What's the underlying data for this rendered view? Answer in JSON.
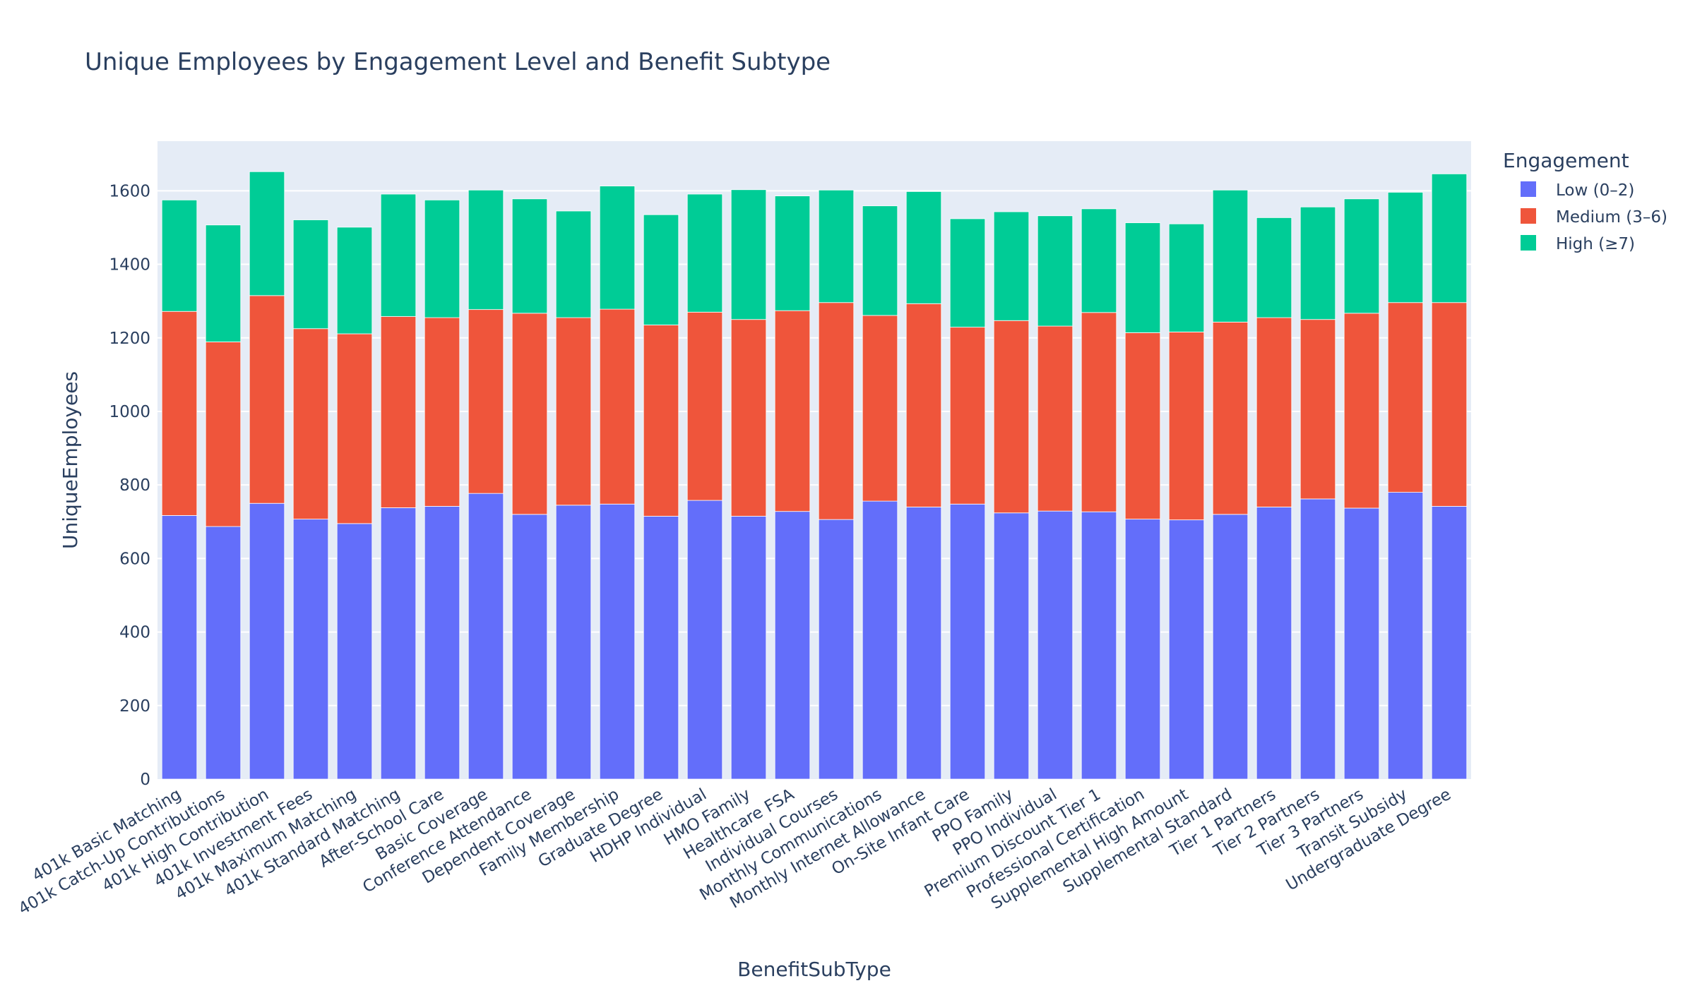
{
  "chart_data": {
    "type": "bar",
    "stacked": true,
    "title": "Unique Employees by Engagement Level and Benefit Subtype",
    "xlabel": "BenefitSubType",
    "ylabel": "UniqueEmployees",
    "ylim": [
      0,
      1735
    ],
    "yticks": [
      0,
      200,
      400,
      600,
      800,
      1000,
      1200,
      1400,
      1600
    ],
    "grid": true,
    "legend": {
      "title": "Engagement",
      "placement": "right"
    },
    "categories": [
      "401k Basic Matching",
      "401k Catch-Up Contributions",
      "401k High Contribution",
      "401k Investment Fees",
      "401k Maximum Matching",
      "401k Standard Matching",
      "After-School Care",
      "Basic Coverage",
      "Conference Attendance",
      "Dependent Coverage",
      "Family Membership",
      "Graduate Degree",
      "HDHP Individual",
      "HMO Family",
      "Healthcare FSA",
      "Individual Courses",
      "Monthly Communications",
      "Monthly Internet Allowance",
      "On-Site Infant Care",
      "PPO Family",
      "PPO Individual",
      "Premium Discount Tier 1",
      "Professional Certification",
      "Supplemental High Amount",
      "Supplemental Standard",
      "Tier 1 Partners",
      "Tier 2 Partners",
      "Tier 3 Partners",
      "Transit Subsidy",
      "Undergraduate Degree"
    ],
    "series": [
      {
        "name": "Low (0–2)",
        "color": "#636efa",
        "values": [
          717,
          687,
          750,
          707,
          695,
          738,
          742,
          777,
          720,
          745,
          748,
          715,
          758,
          715,
          728,
          706,
          756,
          740,
          748,
          724,
          729,
          727,
          707,
          705,
          720,
          740,
          762,
          737,
          780,
          742
        ]
      },
      {
        "name": "Medium (3–6)",
        "color": "#ef553b",
        "values": [
          555,
          502,
          565,
          518,
          516,
          520,
          513,
          500,
          547,
          510,
          530,
          520,
          512,
          535,
          546,
          590,
          505,
          553,
          481,
          523,
          503,
          542,
          507,
          511,
          523,
          515,
          488,
          530,
          516,
          554
        ]
      },
      {
        "name": "High (≥7)",
        "color": "#00cc96",
        "values": [
          303,
          318,
          337,
          296,
          290,
          333,
          320,
          325,
          311,
          290,
          335,
          300,
          321,
          353,
          312,
          306,
          298,
          305,
          295,
          296,
          300,
          282,
          299,
          294,
          359,
          272,
          306,
          311,
          300,
          350
        ]
      }
    ]
  }
}
